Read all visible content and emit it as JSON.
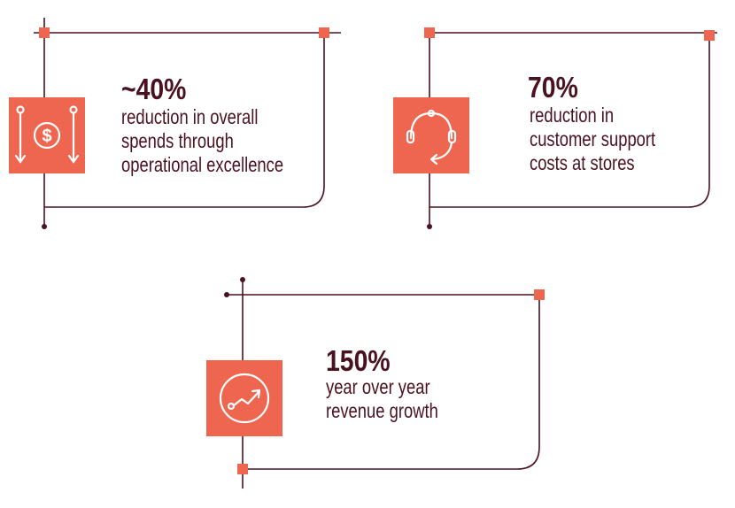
{
  "colors": {
    "accent": "#ef6650",
    "line": "#4a1220",
    "text": "#4a1220"
  },
  "stats": [
    {
      "value": "~40%",
      "lines": [
        "reduction in overall",
        "spends through",
        "operational excellence"
      ],
      "icon": "dollar-arrows-icon"
    },
    {
      "value": "70%",
      "lines": [
        "reduction in",
        "customer support",
        "costs at stores"
      ],
      "icon": "headset-icon"
    },
    {
      "value": "150%",
      "lines": [
        "year over year",
        "revenue growth"
      ],
      "icon": "growth-chart-icon"
    }
  ]
}
